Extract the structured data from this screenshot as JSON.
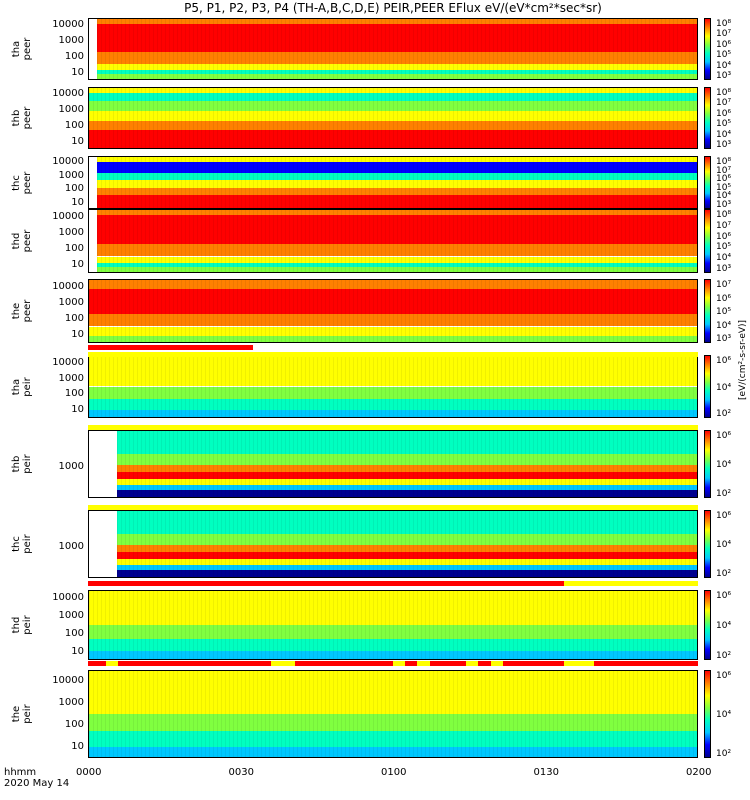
{
  "title": "P5, P1, P2, P3, P4 (TH-A,B,C,D,E) PEIR,PEER EFlux eV/(eV*cm²*sec*sr)",
  "x_label_top": "hhmm",
  "x_label_bottom": "2020 May 14",
  "colorbar_units": "[eV/(cm²-s-sr-eV)]",
  "chart_data": {
    "type": "heatmap",
    "x_ticks": [
      "0000",
      "0030",
      "0100",
      "0130",
      "0200"
    ],
    "x_range_minutes": [
      0,
      120
    ],
    "colorscale": [
      "#000090",
      "#0000ff",
      "#00c8ff",
      "#00ffc0",
      "#80ff40",
      "#ffff00",
      "#ff8000",
      "#ff0000"
    ],
    "panels": [
      {
        "name": "tha peer",
        "line1": "tha",
        "line2": "peer",
        "yticks": [
          "10000",
          "1000",
          "100",
          "10"
        ],
        "cbar": [
          "10⁸",
          "10⁷",
          "10⁶",
          "10⁵",
          "10⁴",
          "10³"
        ],
        "data_start_min": 1.5
      },
      {
        "name": "thb peer",
        "line1": "thb",
        "line2": "peer",
        "yticks": [
          "10000",
          "1000",
          "100",
          "10"
        ],
        "cbar": [
          "10⁸",
          "10⁷",
          "10⁶",
          "10⁵",
          "10⁴",
          "10³"
        ],
        "data_start_min": 0
      },
      {
        "name": "thc peer",
        "line1": "thc",
        "line2": "peer",
        "yticks": [
          "10000",
          "1000",
          "100",
          "10"
        ],
        "cbar": [
          "10⁸",
          "10⁷",
          "10⁶",
          "10⁵",
          "10⁴",
          "10³"
        ],
        "data_start_min": 1.5
      },
      {
        "name": "thd peer",
        "line1": "thd",
        "line2": "peer",
        "yticks": [
          "10000",
          "1000",
          "100",
          "10"
        ],
        "cbar": [
          "10⁸",
          "10⁷",
          "10⁶",
          "10⁵",
          "10⁴",
          "10³"
        ],
        "data_start_min": 1.5
      },
      {
        "name": "the peer",
        "line1": "the",
        "line2": "peer",
        "yticks": [
          "10000",
          "1000",
          "100",
          "10"
        ],
        "cbar": [
          "10⁷",
          "10⁶",
          "10⁵",
          "10⁴",
          "10³"
        ],
        "data_start_min": 0
      },
      {
        "name": "tha peir",
        "line1": "tha",
        "line2": "peir",
        "yticks": [
          "10000",
          "1000",
          "100",
          "10"
        ],
        "cbar": [
          "10⁶",
          "10⁴",
          "10²"
        ],
        "data_start_min": 0
      },
      {
        "name": "thb peir",
        "line1": "thb",
        "line2": "peir",
        "yticks": [
          "1000"
        ],
        "cbar": [
          "10⁶",
          "10⁴",
          "10²"
        ],
        "data_start_min": 5.5
      },
      {
        "name": "thc peir",
        "line1": "thc",
        "line2": "peir",
        "yticks": [
          "1000"
        ],
        "cbar": [
          "10⁶",
          "10⁴",
          "10²"
        ],
        "data_start_min": 5.5
      },
      {
        "name": "thd peir",
        "line1": "thd",
        "line2": "peir",
        "yticks": [
          "10000",
          "1000",
          "100",
          "10"
        ],
        "cbar": [
          "10⁶",
          "10⁴",
          "10²"
        ],
        "data_start_min": 0
      },
      {
        "name": "the peir",
        "line1": "the",
        "line2": "peir",
        "yticks": [
          "10000",
          "1000",
          "100",
          "10"
        ],
        "cbar": [
          "10⁶",
          "10⁴",
          "10²"
        ],
        "data_start_min": 0
      }
    ]
  }
}
